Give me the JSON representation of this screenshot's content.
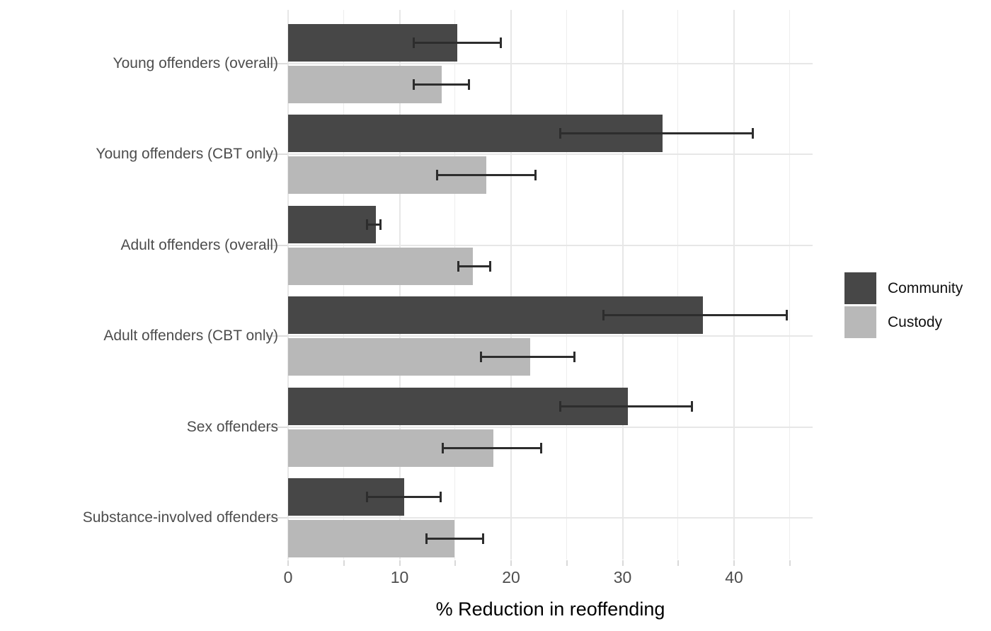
{
  "chart_data": {
    "type": "bar",
    "orientation": "horizontal",
    "title": "",
    "xlabel": "% Reduction in reoffending",
    "ylabel": "",
    "categories": [
      "Young offenders (overall)",
      "Young offenders (CBT only)",
      "Adult offenders (overall)",
      "Adult offenders (CBT only)",
      "Sex offenders",
      "Substance-involved offenders"
    ],
    "series": [
      {
        "name": "Community",
        "color": "#474747",
        "values": [
          15.2,
          33.6,
          7.9,
          37.2,
          30.5,
          10.4
        ],
        "ci_low": [
          11.2,
          24.3,
          7.0,
          28.2,
          24.3,
          7.0
        ],
        "ci_high": [
          19.2,
          41.8,
          8.4,
          44.8,
          36.3,
          13.8
        ]
      },
      {
        "name": "Custody",
        "color": "#b8b8b8",
        "values": [
          13.8,
          17.8,
          16.6,
          21.7,
          18.4,
          14.9
        ],
        "ci_low": [
          11.2,
          13.3,
          15.2,
          17.2,
          13.8,
          12.3
        ],
        "ci_high": [
          16.3,
          22.3,
          18.2,
          25.8,
          22.8,
          17.6
        ]
      }
    ],
    "x_ticks": [
      0,
      10,
      20,
      30,
      40
    ],
    "x_minor_ticks": [
      5,
      15,
      25,
      35,
      45
    ],
    "xlim": [
      0,
      47
    ],
    "grid": true,
    "error_bars": true,
    "legend_position": "right",
    "background": "#ffffff",
    "grid_color": "#e7e7e7"
  },
  "legend": {
    "items": [
      {
        "label": "Community",
        "color": "#474747"
      },
      {
        "label": "Custody",
        "color": "#b8b8b8"
      }
    ]
  },
  "axis": {
    "x_title": "% Reduction in reoffending"
  }
}
